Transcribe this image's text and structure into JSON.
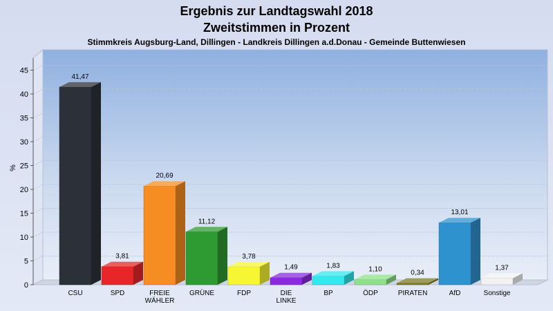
{
  "chart_data": {
    "type": "bar",
    "title": "Ergebnis zur Landtagswahl 2018",
    "title2": "Zweitstimmen in Prozent",
    "subtitle": "Stimmkreis Augsburg-Land, Dillingen - Landkreis Dillingen a.d.Donau - Gemeinde Buttenwiesen",
    "ylabel": "%",
    "ylim": [
      0,
      47
    ],
    "yticks": [
      "0",
      "5",
      "10",
      "15",
      "20",
      "25",
      "30",
      "35",
      "40",
      "45"
    ],
    "grid": true,
    "categories": [
      [
        "CSU"
      ],
      [
        "SPD"
      ],
      [
        "FREIE",
        "WÄHLER"
      ],
      [
        "GRÜNE"
      ],
      [
        "FDP"
      ],
      [
        "DIE",
        "LINKE"
      ],
      [
        "BP"
      ],
      [
        "ÖDP"
      ],
      [
        "PIRATEN"
      ],
      [
        "AfD"
      ],
      [
        "Sonstige"
      ]
    ],
    "values": [
      41.47,
      3.81,
      20.69,
      11.12,
      3.78,
      1.49,
      1.83,
      1.1,
      0.34,
      13.01,
      1.37
    ],
    "value_labels": [
      "41,47",
      "3,81",
      "20,69",
      "11,12",
      "3,78",
      "1,49",
      "1,83",
      "1,10",
      "0,34",
      "13,01",
      "1,37"
    ],
    "colors": [
      "#2c3038",
      "#e8262a",
      "#f68d22",
      "#2e9a32",
      "#f6f633",
      "#8a2be2",
      "#33e9ee",
      "#8ee08a",
      "#7c7a28",
      "#2e92cf",
      "#f2f2f2"
    ]
  }
}
